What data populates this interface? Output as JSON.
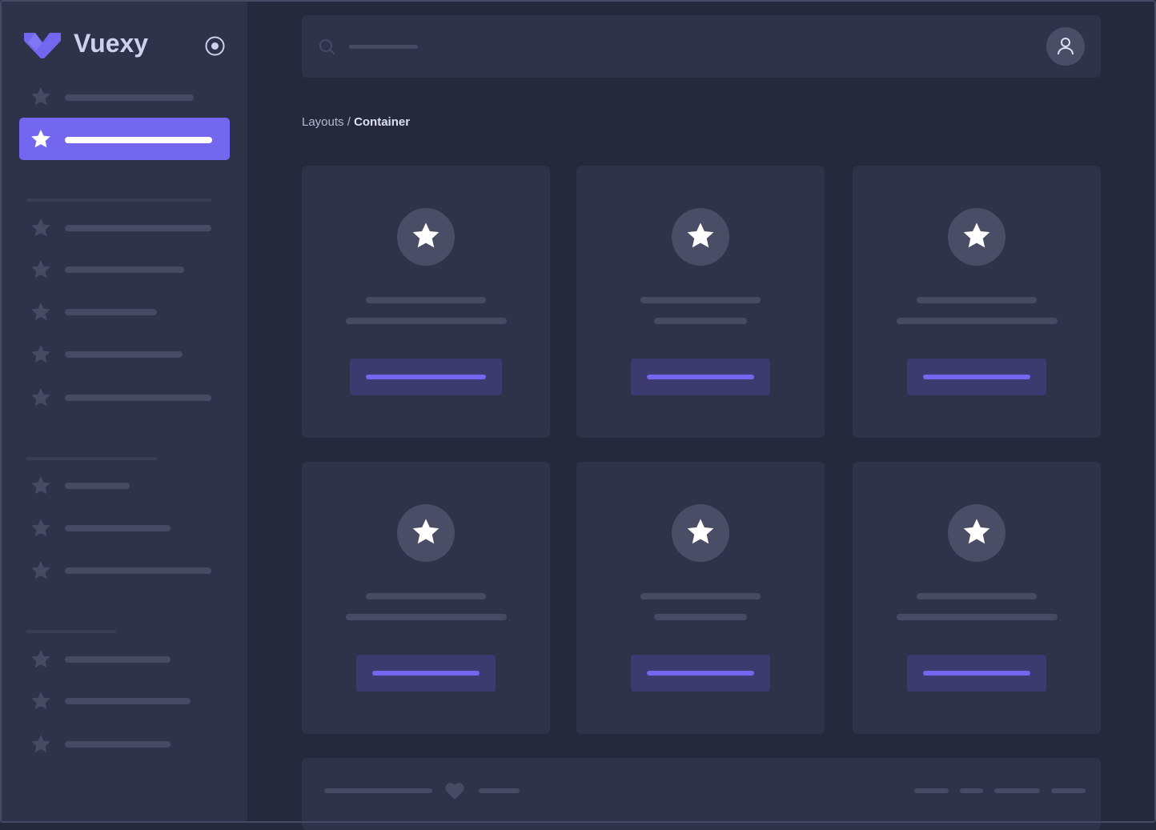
{
  "brand": {
    "name": "Vuexy",
    "logo": "vuexy-logo",
    "colors": {
      "primary": "#7367f0",
      "sidebar": "#2f3349",
      "background": "#25293c",
      "placeholder": "#464a63"
    }
  },
  "sidebar": {
    "toggle_icon": "radio-circle-icon",
    "active_index": 1
  },
  "navbar": {
    "search_icon": "search-icon",
    "avatar_icon": "user-icon"
  },
  "breadcrumb": {
    "parent": "Layouts",
    "separator": " / ",
    "current": "Container"
  },
  "footer": {
    "icon": "heart-icon"
  }
}
